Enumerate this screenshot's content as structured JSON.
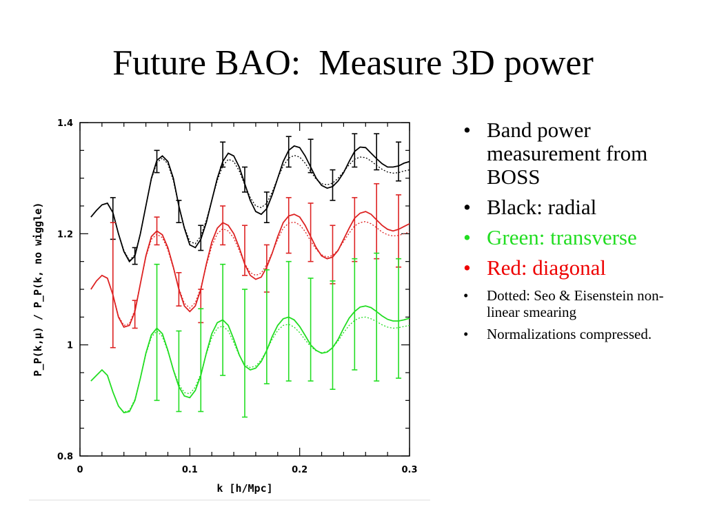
{
  "slide": {
    "title": "Future BAO:  Measure 3D power"
  },
  "bullets": [
    {
      "text": "Band power measurement from BOSS",
      "size": "big",
      "color": "#000000"
    },
    {
      "text": "Black: radial",
      "size": "big",
      "color": "#000000"
    },
    {
      "text": "Green: transverse",
      "size": "big",
      "color": "#22dd22"
    },
    {
      "text": "Red:  diagonal",
      "size": "big",
      "color": "#ee0000"
    },
    {
      "text": "Dotted:  Seo & Eisenstein non-linear smearing",
      "size": "small",
      "color": "#000000"
    },
    {
      "text": "Normalizations compressed.",
      "size": "small",
      "color": "#000000"
    }
  ],
  "bullet_glyph": "•",
  "chart_data": {
    "type": "line",
    "xlabel": "k [h/Mpc]",
    "ylabel": "P_P(k,μ) / P_P(k, no wiggle)",
    "xlim": [
      0,
      0.3
    ],
    "ylim": [
      0.8,
      1.4
    ],
    "xticks": [
      0,
      0.1,
      0.2,
      0.3
    ],
    "xtick_labels": [
      "0",
      "0.1",
      "0.2",
      "0.3"
    ],
    "yticks": [
      0.8,
      1.0,
      1.2,
      1.4
    ],
    "ytick_labels": [
      "0.8",
      "1",
      "1.2",
      "1.4"
    ],
    "series": [
      {
        "color": "#000000",
        "solid": {
          "x": [
            0.01,
            0.015,
            0.02,
            0.025,
            0.03,
            0.035,
            0.04,
            0.045,
            0.05,
            0.055,
            0.06,
            0.065,
            0.07,
            0.075,
            0.08,
            0.085,
            0.09,
            0.095,
            0.1,
            0.105,
            0.11,
            0.115,
            0.12,
            0.125,
            0.13,
            0.135,
            0.14,
            0.145,
            0.15,
            0.155,
            0.16,
            0.165,
            0.17,
            0.175,
            0.18,
            0.185,
            0.19,
            0.195,
            0.2,
            0.205,
            0.21,
            0.215,
            0.22,
            0.225,
            0.23,
            0.235,
            0.24,
            0.245,
            0.25,
            0.255,
            0.26,
            0.265,
            0.27,
            0.275,
            0.28,
            0.285,
            0.29,
            0.295,
            0.3
          ],
          "y": [
            1.23,
            1.242,
            1.252,
            1.255,
            1.238,
            1.2,
            1.168,
            1.15,
            1.16,
            1.2,
            1.25,
            1.3,
            1.332,
            1.34,
            1.33,
            1.3,
            1.25,
            1.21,
            1.18,
            1.175,
            1.19,
            1.22,
            1.26,
            1.3,
            1.33,
            1.345,
            1.34,
            1.32,
            1.29,
            1.26,
            1.24,
            1.235,
            1.245,
            1.27,
            1.3,
            1.33,
            1.35,
            1.358,
            1.355,
            1.34,
            1.32,
            1.3,
            1.287,
            1.282,
            1.285,
            1.295,
            1.31,
            1.33,
            1.348,
            1.356,
            1.355,
            1.345,
            1.335,
            1.326,
            1.32,
            1.32,
            1.322,
            1.327,
            1.33
          ]
        },
        "dotted": {
          "x": [
            0.01,
            0.015,
            0.02,
            0.025,
            0.03,
            0.035,
            0.04,
            0.045,
            0.05,
            0.055,
            0.06,
            0.065,
            0.07,
            0.075,
            0.08,
            0.085,
            0.09,
            0.095,
            0.1,
            0.105,
            0.11,
            0.115,
            0.12,
            0.125,
            0.13,
            0.135,
            0.14,
            0.145,
            0.15,
            0.155,
            0.16,
            0.165,
            0.17,
            0.175,
            0.18,
            0.185,
            0.19,
            0.195,
            0.2,
            0.205,
            0.21,
            0.215,
            0.22,
            0.225,
            0.23,
            0.235,
            0.24,
            0.245,
            0.25,
            0.255,
            0.26,
            0.265,
            0.27,
            0.275,
            0.28,
            0.285,
            0.29,
            0.295,
            0.3
          ],
          "y": [
            1.23,
            1.242,
            1.252,
            1.255,
            1.238,
            1.2,
            1.17,
            1.152,
            1.162,
            1.2,
            1.25,
            1.298,
            1.328,
            1.336,
            1.326,
            1.296,
            1.25,
            1.212,
            1.186,
            1.182,
            1.196,
            1.224,
            1.26,
            1.296,
            1.322,
            1.334,
            1.33,
            1.313,
            1.288,
            1.265,
            1.25,
            1.247,
            1.255,
            1.275,
            1.3,
            1.322,
            1.336,
            1.341,
            1.338,
            1.327,
            1.312,
            1.298,
            1.29,
            1.288,
            1.291,
            1.3,
            1.312,
            1.324,
            1.334,
            1.338,
            1.337,
            1.331,
            1.323,
            1.316,
            1.311,
            1.309,
            1.31,
            1.313,
            1.315
          ]
        },
        "errorbars": [
          {
            "x": 0.03,
            "y": 1.23,
            "lo": 1.19,
            "hi": 1.265
          },
          {
            "x": 0.05,
            "y": 1.16,
            "lo": 1.145,
            "hi": 1.175
          },
          {
            "x": 0.07,
            "y": 1.33,
            "lo": 1.31,
            "hi": 1.35
          },
          {
            "x": 0.09,
            "y": 1.24,
            "lo": 1.22,
            "hi": 1.26
          },
          {
            "x": 0.11,
            "y": 1.19,
            "lo": 1.17,
            "hi": 1.215
          },
          {
            "x": 0.13,
            "y": 1.34,
            "lo": 1.32,
            "hi": 1.365
          },
          {
            "x": 0.15,
            "y": 1.3,
            "lo": 1.275,
            "hi": 1.32
          },
          {
            "x": 0.17,
            "y": 1.25,
            "lo": 1.22,
            "hi": 1.275
          },
          {
            "x": 0.19,
            "y": 1.35,
            "lo": 1.32,
            "hi": 1.375
          },
          {
            "x": 0.21,
            "y": 1.34,
            "lo": 1.31,
            "hi": 1.37
          },
          {
            "x": 0.23,
            "y": 1.29,
            "lo": 1.26,
            "hi": 1.315
          },
          {
            "x": 0.25,
            "y": 1.35,
            "lo": 1.32,
            "hi": 1.38
          },
          {
            "x": 0.27,
            "y": 1.35,
            "lo": 1.315,
            "hi": 1.38
          },
          {
            "x": 0.29,
            "y": 1.33,
            "lo": 1.295,
            "hi": 1.365
          }
        ]
      },
      {
        "color": "#dd2222",
        "solid": {
          "x": [
            0.01,
            0.015,
            0.02,
            0.025,
            0.03,
            0.035,
            0.04,
            0.045,
            0.05,
            0.055,
            0.06,
            0.065,
            0.07,
            0.075,
            0.08,
            0.085,
            0.09,
            0.095,
            0.1,
            0.105,
            0.11,
            0.115,
            0.12,
            0.125,
            0.13,
            0.135,
            0.14,
            0.145,
            0.15,
            0.155,
            0.16,
            0.165,
            0.17,
            0.175,
            0.18,
            0.185,
            0.19,
            0.195,
            0.2,
            0.205,
            0.21,
            0.215,
            0.22,
            0.225,
            0.23,
            0.235,
            0.24,
            0.245,
            0.25,
            0.255,
            0.26,
            0.265,
            0.27,
            0.275,
            0.28,
            0.285,
            0.29,
            0.295,
            0.3
          ],
          "y": [
            1.1,
            1.115,
            1.125,
            1.12,
            1.09,
            1.05,
            1.032,
            1.035,
            1.06,
            1.11,
            1.16,
            1.195,
            1.205,
            1.198,
            1.175,
            1.14,
            1.1,
            1.07,
            1.06,
            1.07,
            1.1,
            1.145,
            1.185,
            1.21,
            1.22,
            1.215,
            1.2,
            1.175,
            1.145,
            1.125,
            1.118,
            1.122,
            1.14,
            1.165,
            1.195,
            1.22,
            1.232,
            1.235,
            1.23,
            1.215,
            1.195,
            1.175,
            1.16,
            1.155,
            1.158,
            1.17,
            1.19,
            1.21,
            1.228,
            1.237,
            1.24,
            1.235,
            1.225,
            1.215,
            1.208,
            1.205,
            1.208,
            1.213,
            1.218
          ]
        },
        "dotted": {
          "x": [
            0.01,
            0.015,
            0.02,
            0.025,
            0.03,
            0.035,
            0.04,
            0.045,
            0.05,
            0.055,
            0.06,
            0.065,
            0.07,
            0.075,
            0.08,
            0.085,
            0.09,
            0.095,
            0.1,
            0.105,
            0.11,
            0.115,
            0.12,
            0.125,
            0.13,
            0.135,
            0.14,
            0.145,
            0.15,
            0.155,
            0.16,
            0.165,
            0.17,
            0.175,
            0.18,
            0.185,
            0.19,
            0.195,
            0.2,
            0.205,
            0.21,
            0.215,
            0.22,
            0.225,
            0.23,
            0.235,
            0.24,
            0.245,
            0.25,
            0.255,
            0.26,
            0.265,
            0.27,
            0.275,
            0.28,
            0.285,
            0.29,
            0.295,
            0.3
          ],
          "y": [
            1.1,
            1.115,
            1.125,
            1.12,
            1.09,
            1.052,
            1.035,
            1.038,
            1.063,
            1.11,
            1.158,
            1.19,
            1.199,
            1.193,
            1.171,
            1.138,
            1.102,
            1.075,
            1.066,
            1.076,
            1.103,
            1.142,
            1.178,
            1.2,
            1.209,
            1.205,
            1.192,
            1.17,
            1.146,
            1.13,
            1.125,
            1.129,
            1.145,
            1.166,
            1.19,
            1.21,
            1.219,
            1.221,
            1.216,
            1.204,
            1.187,
            1.172,
            1.162,
            1.158,
            1.161,
            1.171,
            1.186,
            1.201,
            1.214,
            1.22,
            1.222,
            1.218,
            1.211,
            1.203,
            1.198,
            1.196,
            1.197,
            1.2,
            1.203
          ]
        },
        "errorbars": [
          {
            "x": 0.03,
            "y": 1.11,
            "lo": 0.995,
            "hi": 1.22
          },
          {
            "x": 0.05,
            "y": 1.06,
            "lo": 1.03,
            "hi": 1.08
          },
          {
            "x": 0.07,
            "y": 1.205,
            "lo": 1.18,
            "hi": 1.23
          },
          {
            "x": 0.09,
            "y": 1.1,
            "lo": 1.07,
            "hi": 1.13
          },
          {
            "x": 0.11,
            "y": 1.07,
            "lo": 1.04,
            "hi": 1.1
          },
          {
            "x": 0.13,
            "y": 1.215,
            "lo": 1.18,
            "hi": 1.25
          },
          {
            "x": 0.15,
            "y": 1.17,
            "lo": 1.125,
            "hi": 1.215
          },
          {
            "x": 0.17,
            "y": 1.14,
            "lo": 1.095,
            "hi": 1.18
          },
          {
            "x": 0.19,
            "y": 1.215,
            "lo": 1.165,
            "hi": 1.265
          },
          {
            "x": 0.21,
            "y": 1.205,
            "lo": 1.15,
            "hi": 1.255
          },
          {
            "x": 0.23,
            "y": 1.165,
            "lo": 1.11,
            "hi": 1.215
          },
          {
            "x": 0.25,
            "y": 1.21,
            "lo": 1.15,
            "hi": 1.265
          },
          {
            "x": 0.27,
            "y": 1.22,
            "lo": 1.155,
            "hi": 1.29
          },
          {
            "x": 0.29,
            "y": 1.205,
            "lo": 1.14,
            "hi": 1.27
          }
        ]
      },
      {
        "color": "#22dd22",
        "solid": {
          "x": [
            0.01,
            0.015,
            0.02,
            0.025,
            0.03,
            0.035,
            0.04,
            0.045,
            0.05,
            0.055,
            0.06,
            0.065,
            0.07,
            0.075,
            0.08,
            0.085,
            0.09,
            0.095,
            0.1,
            0.105,
            0.11,
            0.115,
            0.12,
            0.125,
            0.13,
            0.135,
            0.14,
            0.145,
            0.15,
            0.155,
            0.16,
            0.165,
            0.17,
            0.175,
            0.18,
            0.185,
            0.19,
            0.195,
            0.2,
            0.205,
            0.21,
            0.215,
            0.22,
            0.225,
            0.23,
            0.235,
            0.24,
            0.245,
            0.25,
            0.255,
            0.26,
            0.265,
            0.27,
            0.275,
            0.28,
            0.285,
            0.29,
            0.295,
            0.3
          ],
          "y": [
            0.935,
            0.945,
            0.955,
            0.945,
            0.915,
            0.89,
            0.878,
            0.88,
            0.9,
            0.94,
            0.985,
            1.018,
            1.03,
            1.02,
            0.99,
            0.955,
            0.925,
            0.908,
            0.905,
            0.918,
            0.945,
            0.985,
            1.02,
            1.04,
            1.045,
            1.035,
            1.01,
            0.982,
            0.962,
            0.955,
            0.958,
            0.97,
            0.99,
            1.015,
            1.035,
            1.047,
            1.05,
            1.045,
            1.033,
            1.017,
            1.0,
            0.99,
            0.985,
            0.987,
            0.995,
            1.01,
            1.03,
            1.048,
            1.06,
            1.068,
            1.07,
            1.067,
            1.06,
            1.052,
            1.046,
            1.043,
            1.043,
            1.045,
            1.048
          ]
        },
        "dotted": {
          "x": [
            0.01,
            0.015,
            0.02,
            0.025,
            0.03,
            0.035,
            0.04,
            0.045,
            0.05,
            0.055,
            0.06,
            0.065,
            0.07,
            0.075,
            0.08,
            0.085,
            0.09,
            0.095,
            0.1,
            0.105,
            0.11,
            0.115,
            0.12,
            0.125,
            0.13,
            0.135,
            0.14,
            0.145,
            0.15,
            0.155,
            0.16,
            0.165,
            0.17,
            0.175,
            0.18,
            0.185,
            0.19,
            0.195,
            0.2,
            0.205,
            0.21,
            0.215,
            0.22,
            0.225,
            0.23,
            0.235,
            0.24,
            0.245,
            0.25,
            0.255,
            0.26,
            0.265,
            0.27,
            0.275,
            0.28,
            0.285,
            0.29,
            0.295,
            0.3
          ],
          "y": [
            0.935,
            0.945,
            0.955,
            0.945,
            0.915,
            0.89,
            0.879,
            0.882,
            0.902,
            0.94,
            0.983,
            1.014,
            1.025,
            1.015,
            0.988,
            0.956,
            0.929,
            0.914,
            0.912,
            0.924,
            0.948,
            0.983,
            1.013,
            1.03,
            1.034,
            1.025,
            1.004,
            0.981,
            0.965,
            0.959,
            0.962,
            0.973,
            0.99,
            1.01,
            1.026,
            1.035,
            1.037,
            1.032,
            1.022,
            1.009,
            0.997,
            0.989,
            0.986,
            0.988,
            0.995,
            1.007,
            1.022,
            1.035,
            1.044,
            1.049,
            1.05,
            1.047,
            1.042,
            1.036,
            1.032,
            1.03,
            1.031,
            1.033,
            1.035
          ]
        },
        "errorbars": [
          {
            "x": 0.07,
            "y": 1.02,
            "lo": 0.9,
            "hi": 1.145
          },
          {
            "x": 0.09,
            "y": 0.955,
            "lo": 0.88,
            "hi": 1.025
          },
          {
            "x": 0.11,
            "y": 0.92,
            "lo": 0.88,
            "hi": 1.065
          },
          {
            "x": 0.13,
            "y": 1.045,
            "lo": 0.945,
            "hi": 1.145
          },
          {
            "x": 0.15,
            "y": 0.99,
            "lo": 0.87,
            "hi": 1.1
          },
          {
            "x": 0.17,
            "y": 1.0,
            "lo": 0.93,
            "hi": 1.135
          },
          {
            "x": 0.19,
            "y": 1.045,
            "lo": 0.935,
            "hi": 1.15
          },
          {
            "x": 0.21,
            "y": 1.0,
            "lo": 0.935,
            "hi": 1.12
          },
          {
            "x": 0.23,
            "y": 1.005,
            "lo": 0.92,
            "hi": 1.115
          },
          {
            "x": 0.25,
            "y": 1.06,
            "lo": 0.955,
            "hi": 1.155
          },
          {
            "x": 0.27,
            "y": 1.055,
            "lo": 0.935,
            "hi": 1.165
          },
          {
            "x": 0.29,
            "y": 1.045,
            "lo": 0.94,
            "hi": 1.155
          }
        ]
      }
    ]
  }
}
